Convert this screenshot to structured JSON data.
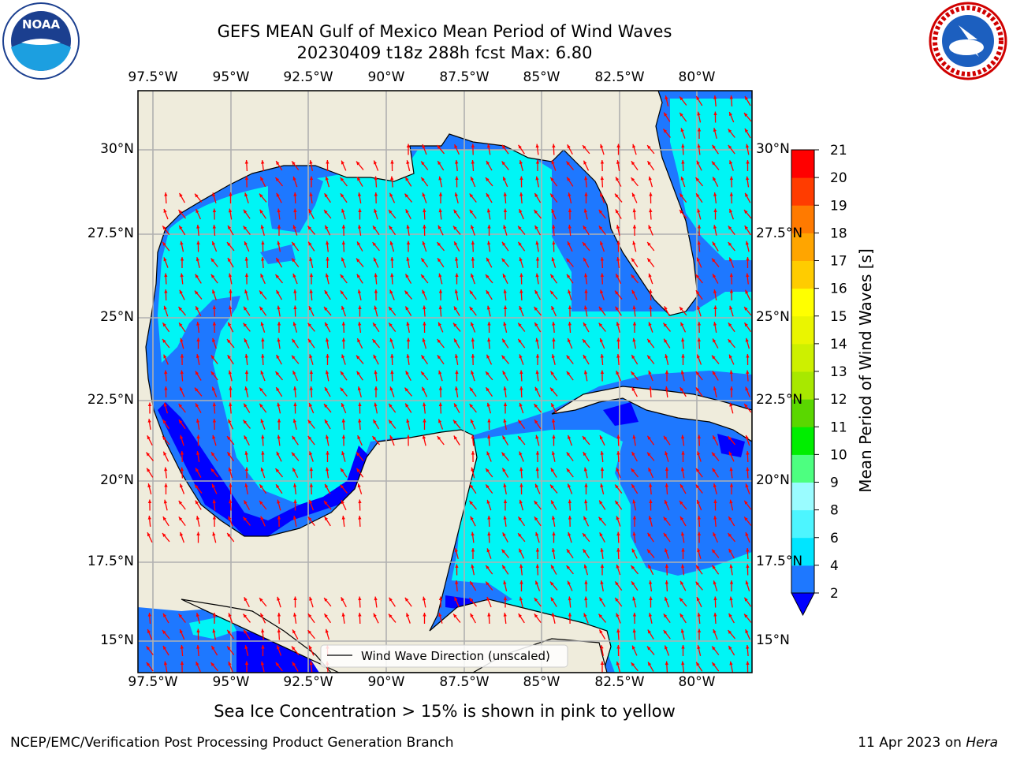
{
  "title": {
    "line1": "GEFS MEAN Gulf of Mexico Mean Period of Wind Waves",
    "line2": "20230409 t18z 288h fcst   Max: 6.80"
  },
  "lon_labels": [
    "97.5°W",
    "95°W",
    "92.5°W",
    "90°W",
    "87.5°W",
    "85°W",
    "82.5°W",
    "80°W"
  ],
  "lat_labels_left": [
    "30°N",
    "27.5°N",
    "25°N",
    "22.5°N",
    "20°N",
    "17.5°N",
    "15°N"
  ],
  "lat_labels_right": [
    "30°N",
    "27.5°N",
    "25°N",
    "22.5°N",
    "20°N",
    "17.5°N",
    "15°N"
  ],
  "legend": {
    "label": "Wind Wave Direction (unscaled)"
  },
  "colorbar": {
    "label": "Mean Period of Wind Waves [s]",
    "ticks": [
      "2",
      "4",
      "6",
      "8",
      "9",
      "10",
      "11",
      "12",
      "13",
      "14",
      "15",
      "16",
      "17",
      "18",
      "19",
      "20",
      "21"
    ],
    "colors": [
      "#0000ff",
      "#1e78ff",
      "#00e5ff",
      "#4df5ff",
      "#9afcff",
      "#4dff80",
      "#00ee00",
      "#5ad700",
      "#a8e800",
      "#cdf000",
      "#eaf500",
      "#ffff00",
      "#ffcc00",
      "#ffa500",
      "#ff7a00",
      "#ff3c00",
      "#ff0000"
    ]
  },
  "subtitle": "Sea Ice Concentration > 15% is shown in pink to yellow",
  "footer": {
    "left": "NCEP/EMC/Verification Post Processing Product Generation Branch",
    "right_prefix": "11 Apr 2023 on ",
    "right_host": "Hera"
  },
  "logos": {
    "left_text": "NOAA",
    "right_text": "NATIONAL WEATHER SERVICE"
  },
  "colors": {
    "land": "#efecdc",
    "water_light": "#00f5f5",
    "water_mid": "#1e78ff",
    "water_dark": "#0000ff",
    "arrow": "#ff0000",
    "grid": "#b0b0b0"
  },
  "wind_direction_deg": 250
}
